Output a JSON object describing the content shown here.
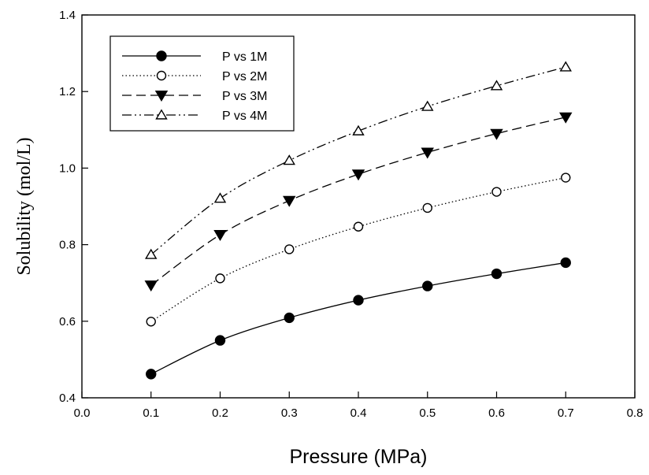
{
  "chart_data": {
    "type": "line",
    "title": "",
    "xlabel": "Pressure (MPa)",
    "ylabel": "Solubility (mol/L)",
    "xlim": [
      0.0,
      0.8
    ],
    "ylim": [
      0.4,
      1.4
    ],
    "x_ticks": [
      "0.0",
      "0.1",
      "0.2",
      "0.3",
      "0.4",
      "0.5",
      "0.6",
      "0.7",
      "0.8"
    ],
    "y_ticks": [
      "0.4",
      "0.6",
      "0.8",
      "1.0",
      "1.2",
      "1.4"
    ],
    "grid": false,
    "legend_position": "top-left",
    "x": [
      0.1,
      0.2,
      0.3,
      0.4,
      0.5,
      0.6,
      0.7
    ],
    "series": [
      {
        "name": "P vs 1M",
        "marker": "filled-circle",
        "line": "solid",
        "values": [
          0.462,
          0.55,
          0.609,
          0.655,
          0.692,
          0.724,
          0.753
        ]
      },
      {
        "name": "P vs 2M",
        "marker": "open-circle",
        "line": "dotted",
        "values": [
          0.599,
          0.712,
          0.788,
          0.847,
          0.896,
          0.938,
          0.975
        ]
      },
      {
        "name": "P vs 3M",
        "marker": "filled-triangle-down",
        "line": "dashed",
        "values": [
          0.694,
          0.826,
          0.915,
          0.984,
          1.041,
          1.09,
          1.133
        ]
      },
      {
        "name": "P vs 4M",
        "marker": "open-triangle-up",
        "line": "dash-dot-dot",
        "values": [
          0.774,
          0.921,
          1.02,
          1.097,
          1.161,
          1.215,
          1.264
        ]
      }
    ],
    "colors": {
      "line": "#000000",
      "background": "#ffffff"
    }
  }
}
